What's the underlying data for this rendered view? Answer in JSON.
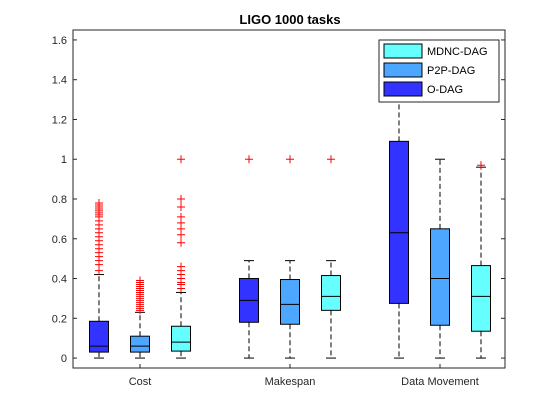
{
  "chart_data": {
    "type": "box",
    "title": "LIGO 1000 tasks",
    "xlabel": "",
    "ylabel": "",
    "ylim": [
      -0.05,
      1.65
    ],
    "yticks": [
      "0",
      "0.2",
      "0.4",
      "0.6",
      "0.8",
      "1",
      "1.2",
      "1.4",
      "1.6"
    ],
    "categories": [
      "Cost",
      "Makespan",
      "Data Movement"
    ],
    "legend_position": "top-right",
    "series": [
      {
        "name": "O-DAG",
        "color": "#3333ff",
        "boxes": [
          {
            "min": 0.0,
            "q1": 0.03,
            "median": 0.06,
            "q3": 0.185,
            "max": 0.42,
            "outliers": [
              0.44,
              0.47,
              0.49,
              0.51,
              0.53,
              0.55,
              0.57,
              0.59,
              0.61,
              0.63,
              0.65,
              0.67,
              0.69,
              0.71,
              0.72,
              0.73,
              0.74,
              0.75,
              0.76,
              0.77,
              0.78
            ]
          },
          {
            "min": 0.0,
            "q1": 0.18,
            "median": 0.29,
            "q3": 0.4,
            "max": 0.49,
            "outliers": [
              1.0
            ]
          },
          {
            "min": 0.0,
            "q1": 0.275,
            "median": 0.63,
            "q3": 1.09,
            "max": 1.42,
            "outliers": []
          }
        ]
      },
      {
        "name": "P2P-DAG",
        "color": "#4da6ff",
        "boxes": [
          {
            "min": 0.0,
            "q1": 0.03,
            "median": 0.06,
            "q3": 0.11,
            "max": 0.23,
            "outliers": [
              0.24,
              0.25,
              0.26,
              0.27,
              0.28,
              0.29,
              0.3,
              0.31,
              0.32,
              0.33,
              0.34,
              0.35,
              0.36,
              0.37,
              0.38,
              0.39
            ]
          },
          {
            "min": 0.0,
            "q1": 0.17,
            "median": 0.27,
            "q3": 0.395,
            "max": 0.49,
            "outliers": [
              1.0
            ]
          },
          {
            "min": 0.0,
            "q1": 0.165,
            "median": 0.4,
            "q3": 0.65,
            "max": 1.0,
            "outliers": []
          }
        ]
      },
      {
        "name": "MDNC-DAG",
        "color": "#66ffff",
        "boxes": [
          {
            "min": 0.0,
            "q1": 0.035,
            "median": 0.08,
            "q3": 0.16,
            "max": 0.33,
            "outliers": [
              0.35,
              0.37,
              0.38,
              0.4,
              0.42,
              0.44,
              0.46,
              0.58,
              0.62,
              0.65,
              0.68,
              0.71,
              0.76,
              0.8,
              1.0
            ]
          },
          {
            "min": 0.0,
            "q1": 0.24,
            "median": 0.31,
            "q3": 0.415,
            "max": 0.49,
            "outliers": [
              1.0
            ]
          },
          {
            "min": 0.0,
            "q1": 0.135,
            "median": 0.31,
            "q3": 0.465,
            "max": 0.96,
            "outliers": [
              0.97
            ]
          }
        ]
      }
    ],
    "legend_order": [
      "MDNC-DAG",
      "P2P-DAG",
      "O-DAG"
    ]
  }
}
